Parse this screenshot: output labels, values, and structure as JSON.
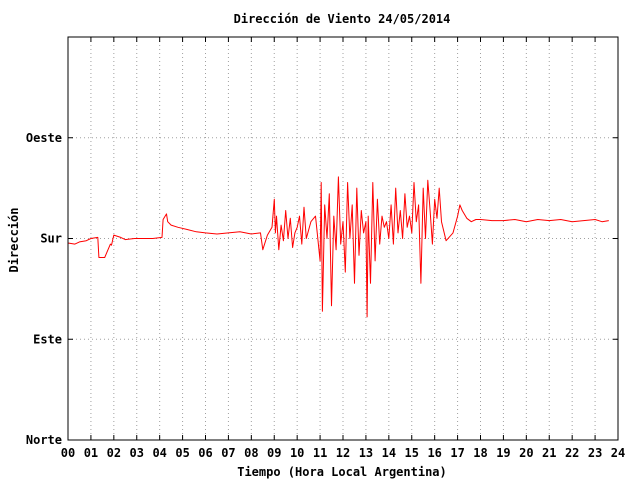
{
  "chart_data": {
    "type": "line",
    "title": "Dirección de Viento 24/05/2014",
    "xlabel": "Tiempo (Hora Local Argentina)",
    "ylabel": "Dirección",
    "xlim": [
      0,
      24
    ],
    "x_ticks": [
      {
        "value": 0,
        "label": "00"
      },
      {
        "value": 1,
        "label": "01"
      },
      {
        "value": 2,
        "label": "02"
      },
      {
        "value": 3,
        "label": "03"
      },
      {
        "value": 4,
        "label": "04"
      },
      {
        "value": 5,
        "label": "05"
      },
      {
        "value": 6,
        "label": "06"
      },
      {
        "value": 7,
        "label": "07"
      },
      {
        "value": 8,
        "label": "08"
      },
      {
        "value": 9,
        "label": "09"
      },
      {
        "value": 10,
        "label": "10"
      },
      {
        "value": 11,
        "label": "11"
      },
      {
        "value": 12,
        "label": "12"
      },
      {
        "value": 13,
        "label": "13"
      },
      {
        "value": 14,
        "label": "14"
      },
      {
        "value": 15,
        "label": "15"
      },
      {
        "value": 16,
        "label": "16"
      },
      {
        "value": 17,
        "label": "17"
      },
      {
        "value": 18,
        "label": "18"
      },
      {
        "value": 19,
        "label": "19"
      },
      {
        "value": 20,
        "label": "20"
      },
      {
        "value": 21,
        "label": "21"
      },
      {
        "value": 22,
        "label": "22"
      },
      {
        "value": 23,
        "label": "23"
      },
      {
        "value": 24,
        "label": "24"
      }
    ],
    "ylim": [
      0,
      360
    ],
    "y_ticks": [
      {
        "value": 0,
        "label": "Norte"
      },
      {
        "value": 90,
        "label": "Este"
      },
      {
        "value": 180,
        "label": "Sur"
      },
      {
        "value": 270,
        "label": "Oeste"
      }
    ],
    "grid": true,
    "series": [
      {
        "color": "#ff0000",
        "x": [
          0.0,
          0.3,
          0.5,
          0.8,
          1.0,
          1.3,
          1.35,
          1.6,
          1.85,
          1.9,
          2.0,
          2.3,
          2.5,
          2.9,
          3.3,
          3.7,
          4.1,
          4.15,
          4.3,
          4.35,
          4.5,
          4.8,
          5.2,
          5.6,
          6.0,
          6.5,
          7.0,
          7.5,
          8.0,
          8.4,
          8.5,
          8.7,
          8.9,
          9.0,
          9.05,
          9.1,
          9.2,
          9.3,
          9.4,
          9.5,
          9.6,
          9.7,
          9.8,
          9.9,
          10.0,
          10.1,
          10.2,
          10.3,
          10.4,
          10.6,
          10.8,
          11.0,
          11.05,
          11.1,
          11.2,
          11.3,
          11.4,
          11.5,
          11.6,
          11.7,
          11.8,
          11.9,
          12.0,
          12.1,
          12.2,
          12.3,
          12.4,
          12.5,
          12.6,
          12.7,
          12.8,
          12.9,
          13.0,
          13.05,
          13.1,
          13.2,
          13.3,
          13.4,
          13.5,
          13.6,
          13.7,
          13.8,
          13.9,
          14.0,
          14.1,
          14.2,
          14.3,
          14.4,
          14.5,
          14.6,
          14.7,
          14.8,
          14.9,
          15.0,
          15.1,
          15.2,
          15.3,
          15.4,
          15.5,
          15.6,
          15.7,
          15.8,
          15.9,
          16.0,
          16.1,
          16.2,
          16.3,
          16.5,
          16.8,
          17.0,
          17.1,
          17.2,
          17.4,
          17.6,
          17.8,
          18.0,
          18.5,
          19.0,
          19.5,
          20.0,
          20.5,
          21.0,
          21.5,
          22.0,
          22.5,
          23.0,
          23.3,
          23.6
        ],
        "y": [
          176,
          175,
          177,
          178,
          180,
          181,
          163,
          163,
          175,
          174,
          183,
          181,
          179,
          180,
          180,
          180,
          181,
          197,
          202,
          195,
          192,
          190,
          188,
          186,
          185,
          184,
          185,
          186,
          184,
          185,
          170,
          183,
          190,
          215,
          185,
          200,
          170,
          192,
          178,
          205,
          180,
          198,
          172,
          185,
          190,
          200,
          175,
          208,
          180,
          195,
          200,
          160,
          230,
          115,
          210,
          180,
          220,
          120,
          200,
          170,
          235,
          175,
          195,
          150,
          230,
          180,
          210,
          140,
          225,
          165,
          205,
          185,
          195,
          110,
          200,
          140,
          230,
          160,
          215,
          175,
          200,
          190,
          195,
          180,
          210,
          175,
          225,
          185,
          205,
          180,
          220,
          190,
          200,
          185,
          230,
          195,
          210,
          140,
          225,
          180,
          232,
          205,
          175,
          215,
          198,
          225,
          195,
          178,
          185,
          200,
          210,
          205,
          198,
          195,
          197,
          197,
          196,
          196,
          197,
          195,
          197,
          196,
          197,
          195,
          196,
          197,
          195,
          196
        ]
      }
    ]
  }
}
